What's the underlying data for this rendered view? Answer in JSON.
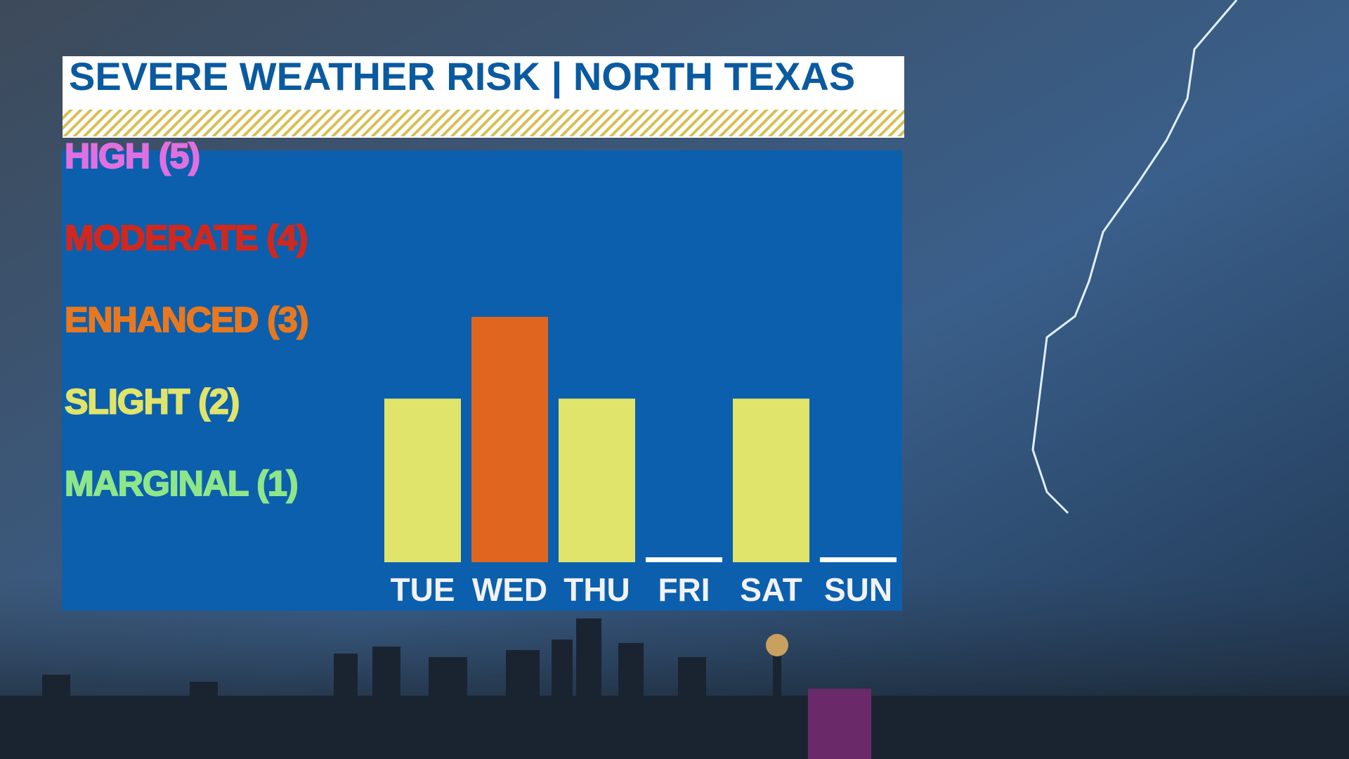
{
  "chart_data": {
    "type": "bar",
    "title": "SEVERE WEATHER RISK | NORTH TEXAS",
    "categories": [
      "TUE",
      "WED",
      "THU",
      "FRI",
      "SAT",
      "SUN"
    ],
    "values": [
      2,
      3,
      2,
      0,
      2,
      0
    ],
    "colors": [
      "#e0e46a",
      "#e0661f",
      "#e0e46a",
      "#ffffff",
      "#e0e46a",
      "#ffffff"
    ],
    "ylim": [
      0,
      5
    ],
    "yticks": [
      {
        "value": 1,
        "label": "MARGINAL (1)"
      },
      {
        "value": 2,
        "label": "SLIGHT (2)"
      },
      {
        "value": 3,
        "label": "ENHANCED (3)"
      },
      {
        "value": 4,
        "label": "MODERATE (4)"
      },
      {
        "value": 5,
        "label": "HIGH (5)"
      }
    ],
    "ytick_colors": [
      "#8ee68a",
      "#e0e46a",
      "#e8781f",
      "#d0281e",
      "#e070e0"
    ]
  }
}
